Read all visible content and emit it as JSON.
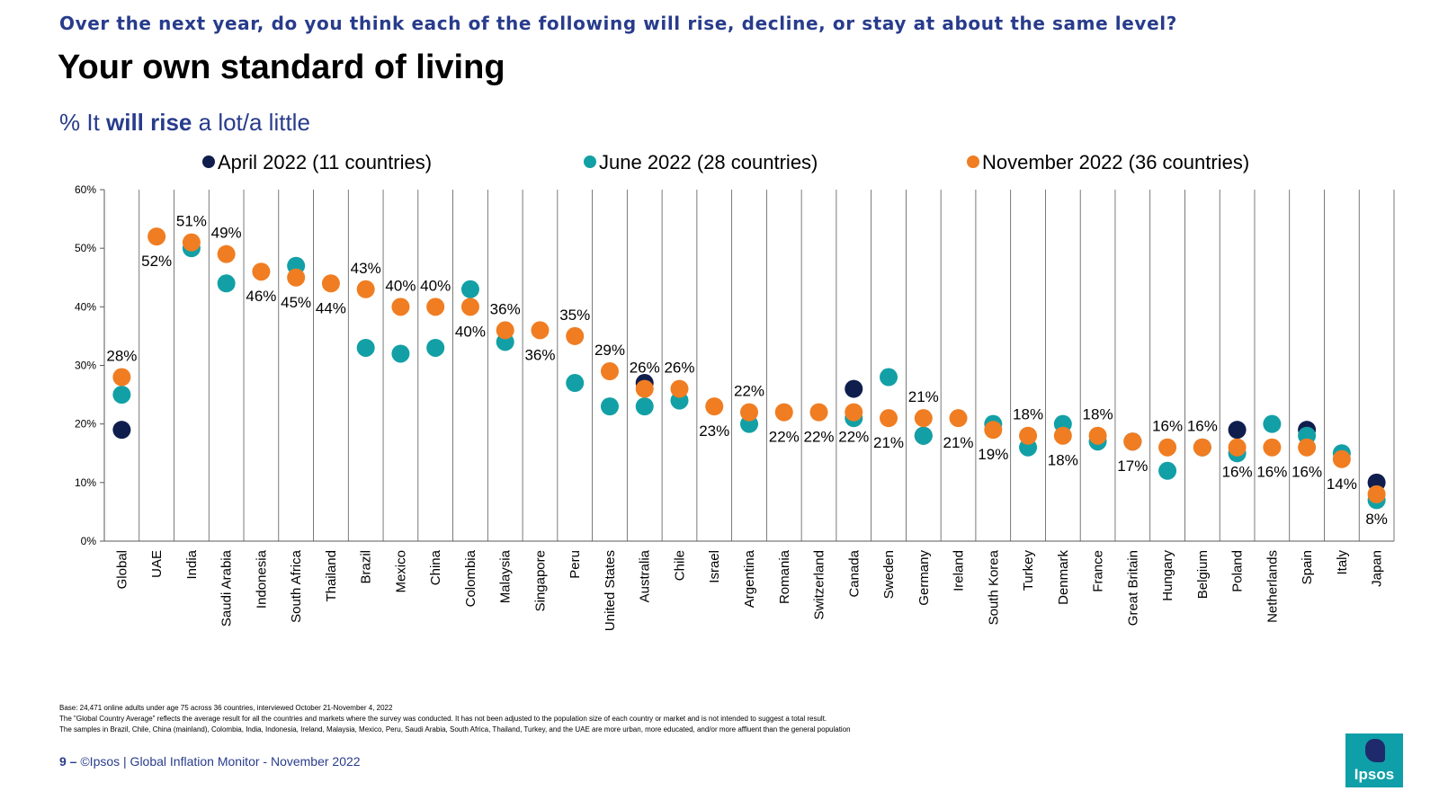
{
  "header": {
    "question": "Over the next year, do you think each of the following will rise, decline, or stay at about the same level?",
    "title": "Your own standard of living",
    "subtitle_prefix": "% It ",
    "subtitle_bold": "will rise",
    "subtitle_suffix": " a lot/a little"
  },
  "colors": {
    "april": "#0f1e4d",
    "june": "#12a0a6",
    "november": "#f07d22",
    "brand_blue": "#283c8c"
  },
  "chart_data": {
    "type": "scatter",
    "ylim": [
      0,
      60
    ],
    "yticks": [
      "0%",
      "10%",
      "20%",
      "30%",
      "40%",
      "50%",
      "60%"
    ],
    "categories": [
      "Global",
      "UAE",
      "India",
      "Saudi Arabia",
      "Indonesia",
      "South Africa",
      "Thailand",
      "Brazil",
      "Mexico",
      "China",
      "Colombia",
      "Malaysia",
      "Singapore",
      "Peru",
      "United States",
      "Australia",
      "Chile",
      "Israel",
      "Argentina",
      "Romania",
      "Switzerland",
      "Canada",
      "Sweden",
      "Germany",
      "Ireland",
      "South Korea",
      "Turkey",
      "Denmark",
      "France",
      "Great Britain",
      "Hungary",
      "Belgium",
      "Poland",
      "Netherlands",
      "Spain",
      "Italy",
      "Japan"
    ],
    "series": [
      {
        "name": "April 2022 (11 countries)",
        "key": "april",
        "values": [
          19,
          null,
          null,
          null,
          null,
          null,
          null,
          null,
          null,
          null,
          null,
          null,
          null,
          null,
          null,
          27,
          null,
          null,
          null,
          null,
          null,
          26,
          null,
          18,
          null,
          null,
          null,
          null,
          null,
          17,
          null,
          null,
          19,
          null,
          19,
          null,
          10
        ]
      },
      {
        "name": "June 2022 (28 countries)",
        "key": "june",
        "values": [
          25,
          null,
          50,
          44,
          null,
          47,
          null,
          33,
          32,
          33,
          43,
          34,
          null,
          27,
          23,
          23,
          24,
          null,
          20,
          null,
          null,
          21,
          28,
          18,
          null,
          20,
          16,
          20,
          17,
          null,
          12,
          16,
          15,
          20,
          18,
          15,
          7
        ]
      },
      {
        "name": "November 2022 (36 countries)",
        "key": "november",
        "values": [
          28,
          52,
          51,
          49,
          46,
          45,
          44,
          43,
          40,
          40,
          40,
          36,
          36,
          35,
          29,
          26,
          26,
          23,
          22,
          22,
          22,
          22,
          21,
          21,
          21,
          19,
          18,
          18,
          18,
          17,
          16,
          16,
          16,
          16,
          16,
          14,
          8
        ]
      }
    ],
    "data_labels": [
      "28%",
      "52%",
      "51%",
      "49%",
      "46%",
      "45%",
      "44%",
      "43%",
      "40%",
      "40%",
      "40%",
      "36%",
      "36%",
      "35%",
      "29%",
      "26%",
      "26%",
      "23%",
      "22%",
      "22%",
      "22%",
      "22%",
      "21%",
      "21%",
      "21%",
      "19%",
      "18%",
      "18%",
      "18%",
      "17%",
      "16%",
      "16%",
      "16%",
      "16%",
      "16%",
      "14%",
      "8%"
    ],
    "label_position": [
      "above",
      "below",
      "above",
      "above",
      "below",
      "below",
      "below",
      "above",
      "above",
      "above",
      "below",
      "above",
      "below",
      "above",
      "above",
      "above",
      "above",
      "below",
      "above",
      "below",
      "below",
      "below",
      "below",
      "above",
      "below",
      "below",
      "above",
      "below",
      "above",
      "below",
      "above",
      "above",
      "below",
      "below",
      "below",
      "below",
      "below"
    ],
    "legend_placement": "top"
  },
  "footnotes": [
    "Base: 24,471 online adults under age 75 across 36 countries, interviewed October 21-November 4, 2022",
    "The \"Global Country Average\" reflects the average result for all the countries and markets where the survey was conducted. It has not been adjusted to the population size of each country or market and is not intended to suggest a total result.",
    "The samples in Brazil, Chile, China (mainland), Colombia, India, Indonesia, Ireland, Malaysia, Mexico, Peru, Saudi Arabia, South Africa, Thailand, Turkey, and the UAE are more urban, more educated, and/or more affluent than the general population"
  ],
  "footer": {
    "page": "9 –",
    "text": "©Ipsos | Global Inflation Monitor - November 2022",
    "logo_text": "Ipsos"
  }
}
